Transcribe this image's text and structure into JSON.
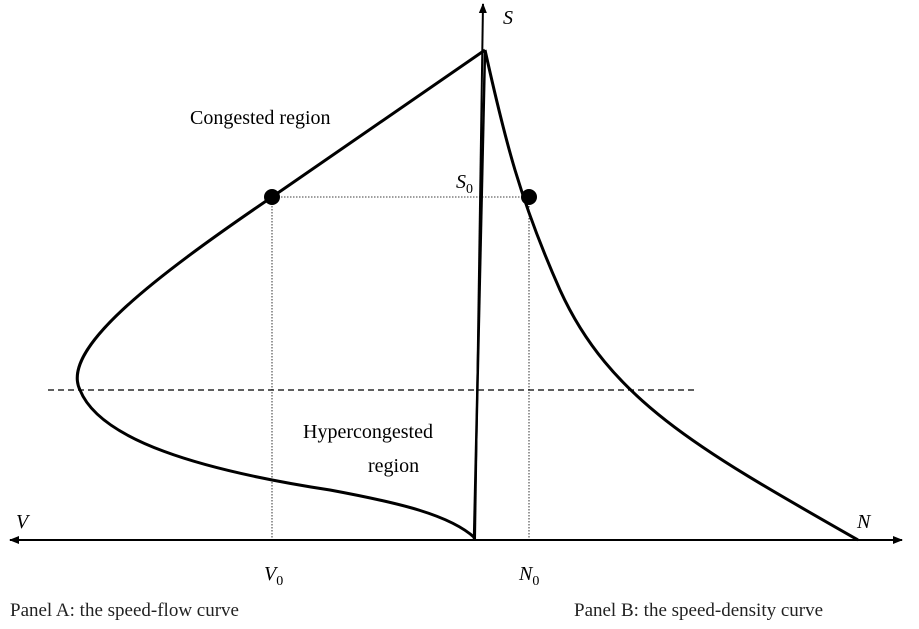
{
  "axes": {
    "vertical": "S",
    "left": "V",
    "right": "N"
  },
  "markers": {
    "s0": {
      "symbol": "S",
      "subscript": "0"
    },
    "v0": {
      "symbol": "V",
      "subscript": "0"
    },
    "n0": {
      "symbol": "N",
      "subscript": "0"
    }
  },
  "regions": {
    "congested": "Congested region",
    "hypercongested": [
      "Hypercongested",
      "region"
    ]
  },
  "captions": [
    "Panel A: the speed-flow curve",
    "Panel B: the speed-density curve"
  ]
}
